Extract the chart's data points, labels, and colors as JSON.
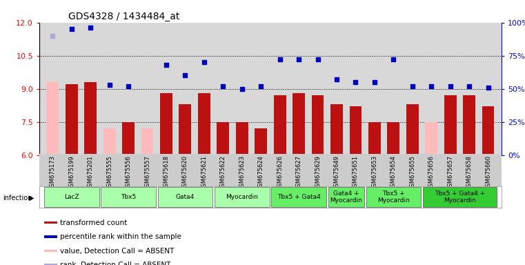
{
  "title": "GDS4328 / 1434484_at",
  "samples": [
    "GSM675173",
    "GSM675199",
    "GSM675201",
    "GSM675555",
    "GSM675556",
    "GSM675557",
    "GSM675618",
    "GSM675620",
    "GSM675621",
    "GSM675622",
    "GSM675623",
    "GSM675624",
    "GSM675626",
    "GSM675627",
    "GSM675629",
    "GSM675649",
    "GSM675651",
    "GSM675653",
    "GSM675654",
    "GSM675655",
    "GSM675656",
    "GSM675657",
    "GSM675658",
    "GSM675660"
  ],
  "bar_values": [
    9.3,
    9.2,
    9.3,
    7.2,
    7.5,
    7.2,
    8.8,
    8.3,
    8.8,
    7.5,
    7.5,
    7.2,
    8.7,
    8.8,
    8.7,
    8.3,
    8.2,
    7.5,
    7.5,
    8.3,
    7.5,
    8.7,
    8.7,
    8.2
  ],
  "bar_absent": [
    true,
    false,
    false,
    true,
    false,
    true,
    false,
    false,
    false,
    false,
    false,
    false,
    false,
    false,
    false,
    false,
    false,
    false,
    false,
    false,
    true,
    false,
    false,
    false
  ],
  "rank_values": [
    90,
    95,
    96,
    53,
    52,
    null,
    68,
    60,
    70,
    52,
    50,
    52,
    72,
    72,
    72,
    57,
    55,
    55,
    72,
    52,
    52,
    52,
    52,
    51
  ],
  "rank_absent": [
    true,
    false,
    false,
    false,
    false,
    false,
    false,
    false,
    false,
    false,
    false,
    false,
    false,
    false,
    false,
    false,
    false,
    false,
    false,
    false,
    false,
    false,
    false,
    false
  ],
  "groups": [
    {
      "label": "LacZ",
      "start": 0,
      "end": 2,
      "color": "#aaffaa"
    },
    {
      "label": "Tbx5",
      "start": 3,
      "end": 5,
      "color": "#aaffaa"
    },
    {
      "label": "Gata4",
      "start": 6,
      "end": 8,
      "color": "#aaffaa"
    },
    {
      "label": "Myocardin",
      "start": 9,
      "end": 11,
      "color": "#aaffaa"
    },
    {
      "label": "Tbx5 + Gata4",
      "start": 12,
      "end": 14,
      "color": "#66ee66"
    },
    {
      "label": "Gata4 +\nMyocardin",
      "start": 15,
      "end": 16,
      "color": "#66ee66"
    },
    {
      "label": "Tbx5 +\nMyocardin",
      "start": 17,
      "end": 19,
      "color": "#66ee66"
    },
    {
      "label": "Tbx5 + Gata4 +\nMyocardin",
      "start": 20,
      "end": 23,
      "color": "#33cc33"
    }
  ],
  "ylim_left": [
    6,
    12
  ],
  "ylim_right": [
    0,
    100
  ],
  "yticks_left": [
    6,
    7.5,
    9,
    10.5,
    12
  ],
  "yticks_right": [
    0,
    25,
    50,
    75,
    100
  ],
  "bar_color_normal": "#bb1111",
  "bar_color_absent": "#ffbbbb",
  "rank_color_normal": "#0000bb",
  "rank_color_absent": "#aaaadd",
  "dotted_line_y": [
    7.5,
    9.0,
    10.5
  ],
  "bar_width": 0.65
}
